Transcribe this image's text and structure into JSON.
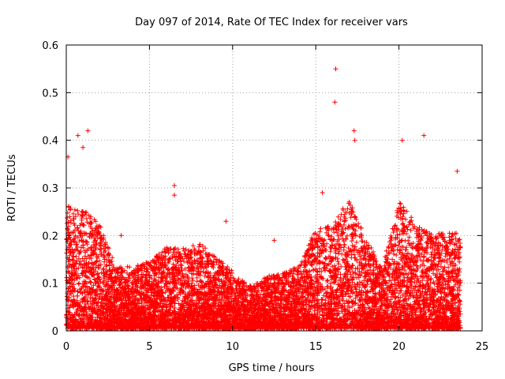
{
  "chart_data": {
    "type": "scatter",
    "title": "Day 097 of 2014, Rate Of TEC Index for receiver vars",
    "xlabel": "GPS time / hours",
    "ylabel": "ROTI / TECUs",
    "xlim": [
      0,
      25
    ],
    "ylim": [
      0,
      0.6
    ],
    "x_ticks": [
      0,
      5,
      10,
      15,
      20,
      25
    ],
    "x_tick_labels": [
      "0",
      "5",
      "10",
      "15",
      "20",
      "25"
    ],
    "y_ticks": [
      0,
      0.1,
      0.2,
      0.3,
      0.4,
      0.5,
      0.6
    ],
    "y_tick_labels": [
      "0",
      "0.1",
      "0.2",
      "0.3",
      "0.4",
      "0.5",
      "0.6"
    ],
    "grid": true,
    "marker": "+",
    "color": "#ff0000",
    "series": [
      {
        "name": "ROTI",
        "x_range": [
          0,
          23.7
        ],
        "outliers": [
          {
            "x": 0.1,
            "y": 0.365
          },
          {
            "x": 0.7,
            "y": 0.41
          },
          {
            "x": 1.3,
            "y": 0.42
          },
          {
            "x": 1.0,
            "y": 0.385
          },
          {
            "x": 6.5,
            "y": 0.305
          },
          {
            "x": 6.5,
            "y": 0.285
          },
          {
            "x": 16.2,
            "y": 0.55
          },
          {
            "x": 16.15,
            "y": 0.48
          },
          {
            "x": 17.3,
            "y": 0.42
          },
          {
            "x": 17.35,
            "y": 0.4
          },
          {
            "x": 15.4,
            "y": 0.29
          },
          {
            "x": 20.2,
            "y": 0.4
          },
          {
            "x": 21.5,
            "y": 0.41
          },
          {
            "x": 23.5,
            "y": 0.335
          },
          {
            "x": 3.3,
            "y": 0.2
          },
          {
            "x": 9.6,
            "y": 0.23
          },
          {
            "x": 12.5,
            "y": 0.19
          }
        ],
        "envelope": [
          {
            "x": 0,
            "y": 0.26
          },
          {
            "x": 1,
            "y": 0.25
          },
          {
            "x": 2,
            "y": 0.22
          },
          {
            "x": 3,
            "y": 0.13
          },
          {
            "x": 4,
            "y": 0.13
          },
          {
            "x": 5,
            "y": 0.14
          },
          {
            "x": 6,
            "y": 0.17
          },
          {
            "x": 7,
            "y": 0.17
          },
          {
            "x": 8,
            "y": 0.18
          },
          {
            "x": 9,
            "y": 0.15
          },
          {
            "x": 10,
            "y": 0.12
          },
          {
            "x": 11,
            "y": 0.09
          },
          {
            "x": 12,
            "y": 0.11
          },
          {
            "x": 13,
            "y": 0.12
          },
          {
            "x": 14,
            "y": 0.13
          },
          {
            "x": 15,
            "y": 0.21
          },
          {
            "x": 16,
            "y": 0.22
          },
          {
            "x": 17,
            "y": 0.27
          },
          {
            "x": 18,
            "y": 0.19
          },
          {
            "x": 19,
            "y": 0.13
          },
          {
            "x": 20,
            "y": 0.27
          },
          {
            "x": 21,
            "y": 0.22
          },
          {
            "x": 22,
            "y": 0.2
          },
          {
            "x": 23,
            "y": 0.2
          },
          {
            "x": 23.7,
            "y": 0.2
          }
        ]
      }
    ]
  }
}
